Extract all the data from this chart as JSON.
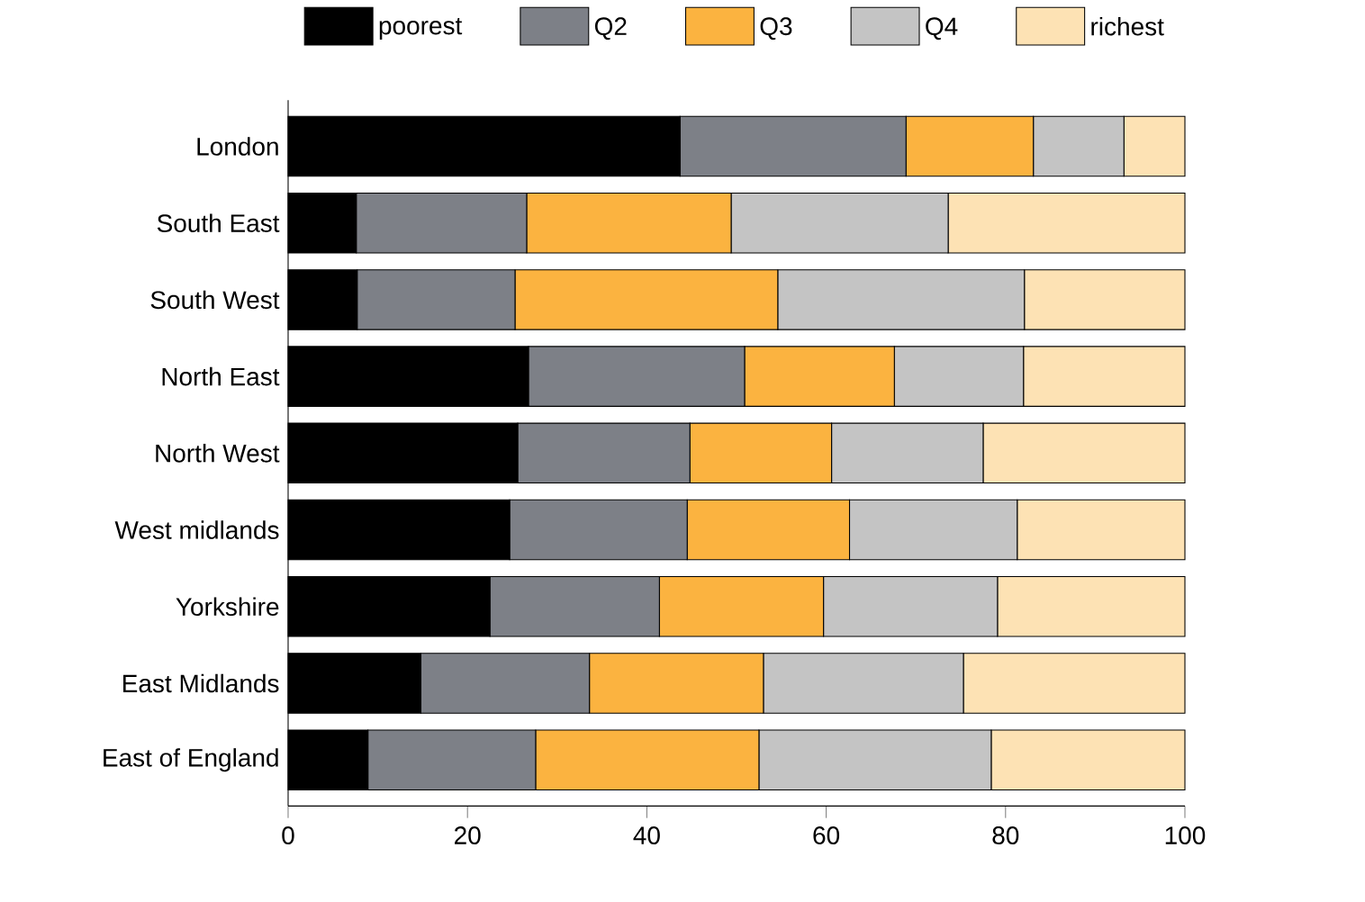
{
  "chart_data": {
    "type": "bar",
    "orientation": "horizontal",
    "stacked": true,
    "legend": "top",
    "categories": [
      "London",
      "South East",
      "South West",
      "North East",
      "North West",
      "West midlands",
      "Yorkshire",
      "East Midlands",
      "East of England"
    ],
    "series": [
      {
        "name": "poorest",
        "color": "#000000",
        "values": [
          43.7,
          7.6,
          7.7,
          26.8,
          25.6,
          24.7,
          22.5,
          14.8,
          8.9
        ]
      },
      {
        "name": "Q2",
        "color": "#7d8087",
        "values": [
          25.2,
          19.0,
          17.6,
          24.1,
          19.2,
          19.8,
          18.9,
          18.8,
          18.7
        ]
      },
      {
        "name": "Q3",
        "color": "#fbb340",
        "values": [
          14.2,
          22.8,
          29.3,
          16.7,
          15.8,
          18.1,
          18.3,
          19.4,
          24.9
        ]
      },
      {
        "name": "Q4",
        "color": "#c4c4c4",
        "values": [
          10.1,
          24.2,
          27.5,
          14.4,
          16.9,
          18.7,
          19.4,
          22.3,
          25.9
        ]
      },
      {
        "name": "richest",
        "color": "#fde2b4",
        "values": [
          6.8,
          26.4,
          17.9,
          18.0,
          22.5,
          18.7,
          20.9,
          24.7,
          21.6
        ]
      }
    ],
    "xlim": [
      0,
      100
    ],
    "xticks": [
      0,
      20,
      40,
      60,
      80,
      100
    ]
  }
}
